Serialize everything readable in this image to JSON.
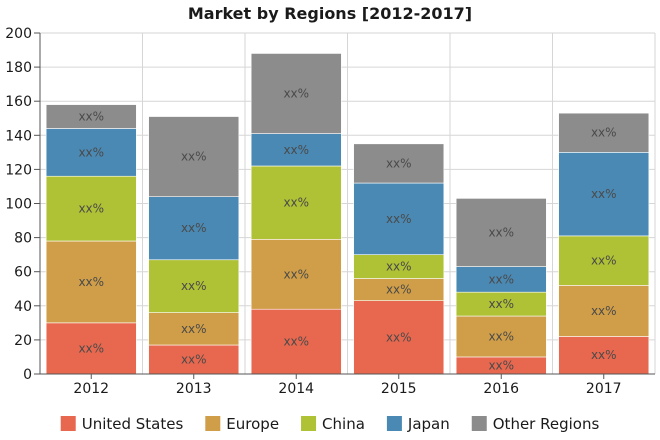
{
  "chart_data": {
    "type": "bar",
    "stacked": true,
    "title": "Market by Regions [2012-2017]",
    "xlabel": "",
    "ylabel": "",
    "ylim": [
      0,
      200
    ],
    "yticks": [
      0,
      20,
      40,
      60,
      80,
      100,
      120,
      140,
      160,
      180,
      200
    ],
    "grid": true,
    "legend_position": "bottom",
    "segment_label": "xx%",
    "categories": [
      "2012",
      "2013",
      "2014",
      "2015",
      "2016",
      "2017"
    ],
    "series": [
      {
        "name": "United States",
        "color": "#E8684F",
        "values": [
          30,
          17,
          38,
          43,
          10,
          22
        ]
      },
      {
        "name": "Europe",
        "color": "#D09E48",
        "values": [
          48,
          19,
          41,
          13,
          24,
          30
        ]
      },
      {
        "name": "China",
        "color": "#AFC135",
        "values": [
          38,
          31,
          43,
          14,
          14,
          29
        ]
      },
      {
        "name": "Japan",
        "color": "#4A89B3",
        "values": [
          28,
          37,
          19,
          42,
          15,
          49
        ]
      },
      {
        "name": "Other Regions",
        "color": "#8C8C8C",
        "values": [
          14,
          47,
          47,
          23,
          40,
          23
        ]
      }
    ]
  }
}
